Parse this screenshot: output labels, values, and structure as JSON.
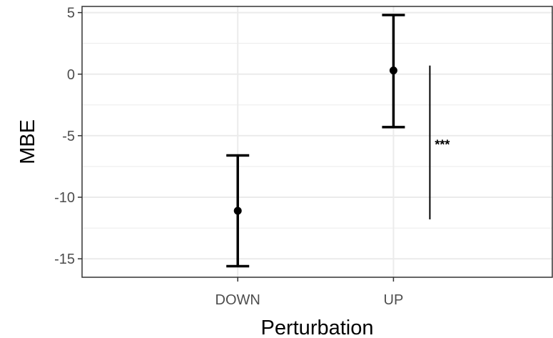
{
  "chart_data": {
    "type": "scatter",
    "xlabel": "Perturbation",
    "ylabel": "MBE",
    "categories": [
      "DOWN",
      "UP"
    ],
    "ylim": [
      -16.5,
      5.5
    ],
    "yticks": [
      5,
      0,
      -5,
      -10,
      -15
    ],
    "ytick_labels": [
      "5",
      "0",
      "-5",
      "-10",
      "-15"
    ],
    "grid": true,
    "series": [
      {
        "points": [
          {
            "category": "DOWN",
            "mean": -11.1,
            "lower": -15.6,
            "upper": -6.6
          },
          {
            "category": "UP",
            "mean": 0.3,
            "lower": -4.3,
            "upper": 4.8
          }
        ]
      }
    ],
    "annotations": [
      {
        "text": "***",
        "y_from": -11.8,
        "y_to": 0.7
      }
    ],
    "colors": {
      "mark": "#000000",
      "grid": "#ebebeb",
      "panel_border": "#333333",
      "tick_text": "#4d4d4d"
    }
  }
}
